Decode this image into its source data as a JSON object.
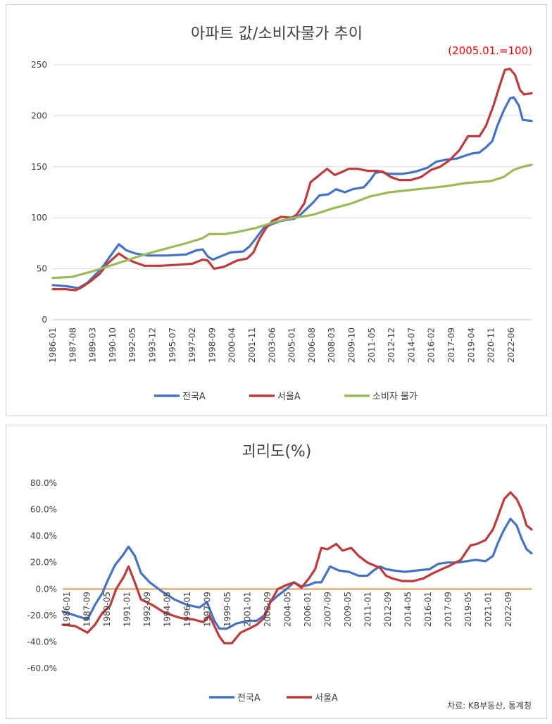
{
  "chart_data": [
    {
      "type": "line",
      "title": "아파트 값/소비자물가 추이",
      "annotation": "(2005.01.=100)",
      "ylim": [
        0,
        250
      ],
      "yticks": [
        "0",
        "50",
        "100",
        "150",
        "200",
        "250"
      ],
      "xlim": [
        1986.0,
        2023.7
      ],
      "xticks": [
        "1986-01",
        "1987-08",
        "1989-03",
        "1990-10",
        "1992-05",
        "1993-12",
        "1995-07",
        "1997-02",
        "1998-09",
        "2000-04",
        "2001-11",
        "2003-06",
        "2005-01",
        "2006-08",
        "2008-03",
        "2009-10",
        "2011-05",
        "2012-12",
        "2014-07",
        "2016-02",
        "2017-09",
        "2019-04",
        "2020-11",
        "2022-06"
      ],
      "grid": true,
      "legend": "bottom",
      "series": [
        {
          "name": "전국A",
          "color": "#4472c4",
          "x": [
            1986.0,
            1987.0,
            1988.0,
            1988.7,
            1989.5,
            1990.0,
            1990.5,
            1991.2,
            1991.8,
            1992.5,
            1993.5,
            1995.0,
            1996.5,
            1997.3,
            1997.8,
            1998.2,
            1998.6,
            1999.2,
            2000.0,
            2001.0,
            2001.5,
            2002.0,
            2002.6,
            2003.3,
            2004.0,
            2005.0,
            2005.5,
            2006.0,
            2006.5,
            2007.0,
            2007.7,
            2008.3,
            2009.0,
            2009.6,
            2010.5,
            2011.0,
            2011.4,
            2011.8,
            2012.5,
            2013.5,
            2014.5,
            2015.5,
            2016.2,
            2017.0,
            2017.8,
            2018.5,
            2019.0,
            2019.6,
            2020.1,
            2020.6,
            2021.0,
            2021.5,
            2022.0,
            2022.3,
            2022.7,
            2023.0,
            2023.7
          ],
          "values": [
            34,
            33,
            31,
            36,
            46,
            53,
            62,
            74,
            68,
            65,
            63,
            63,
            64,
            68,
            69,
            62,
            59,
            62,
            66,
            67,
            72,
            80,
            90,
            94,
            97,
            99,
            103,
            109,
            115,
            122,
            123,
            128,
            125,
            128,
            130,
            137,
            144,
            145,
            143,
            143,
            145,
            149,
            155,
            157,
            158,
            161,
            163,
            164,
            169,
            175,
            190,
            205,
            217,
            218,
            210,
            196,
            195
          ]
        },
        {
          "name": "서울A",
          "color": "#c0393b",
          "x": [
            1986.0,
            1987.0,
            1987.8,
            1988.3,
            1989.0,
            1989.7,
            1990.3,
            1991.2,
            1991.8,
            1992.3,
            1993.2,
            1994.5,
            1996.0,
            1997.0,
            1997.8,
            1998.2,
            1998.7,
            1999.5,
            2000.5,
            2001.3,
            2001.8,
            2002.3,
            2002.8,
            2003.3,
            2004.0,
            2004.8,
            2005.2,
            2005.8,
            2006.3,
            2006.8,
            2007.6,
            2008.2,
            2008.8,
            2009.3,
            2010.0,
            2010.8,
            2011.5,
            2012.0,
            2012.6,
            2013.3,
            2014.2,
            2015.0,
            2015.8,
            2016.5,
            2017.2,
            2018.0,
            2018.7,
            2019.0,
            2019.6,
            2020.1,
            2020.7,
            2021.2,
            2021.6,
            2022.0,
            2022.4,
            2022.8,
            2023.1,
            2023.7
          ],
          "values": [
            30,
            30,
            29,
            32,
            38,
            45,
            55,
            65,
            60,
            57,
            53,
            53,
            54,
            55,
            59,
            58,
            50,
            52,
            58,
            60,
            66,
            80,
            90,
            97,
            101,
            100,
            103,
            114,
            135,
            140,
            148,
            142,
            145,
            148,
            148,
            146,
            146,
            145,
            140,
            137,
            137,
            140,
            147,
            150,
            156,
            166,
            180,
            180,
            180,
            190,
            210,
            230,
            245,
            246,
            240,
            225,
            221,
            222
          ]
        },
        {
          "name": "소비자 물가",
          "color": "#9bbb59",
          "x": [
            1986.0,
            1987.5,
            1989.0,
            1990.5,
            1992.0,
            1993.5,
            1995.0,
            1996.5,
            1997.8,
            1998.3,
            1999.5,
            2000.5,
            2002.0,
            2003.5,
            2005.0,
            2006.5,
            2008.0,
            2009.5,
            2011.0,
            2012.5,
            2014.0,
            2015.5,
            2017.0,
            2018.5,
            2019.5,
            2020.5,
            2021.5,
            2022.3,
            2023.0,
            2023.7
          ],
          "values": [
            41,
            42,
            47,
            53,
            59,
            65,
            70,
            75,
            80,
            84,
            84,
            86,
            90,
            96,
            100,
            103,
            109,
            114,
            121,
            125,
            127,
            129,
            131,
            134,
            135,
            136,
            140,
            147,
            150,
            152
          ]
        }
      ]
    },
    {
      "type": "line",
      "title": "괴리도(%)",
      "ylim": [
        -60,
        80
      ],
      "yticks": [
        "-60.0%",
        "-40.0%",
        "-20.0%",
        "0.0%",
        "20.0%",
        "40.0%",
        "60.0%",
        "80.0%"
      ],
      "xlim": [
        1986.0,
        2023.7
      ],
      "xticks": [
        "1986-01",
        "1987-09",
        "1989-05",
        "1991-01",
        "1992-09",
        "1994-05",
        "1996-01",
        "1997-09",
        "1999-05",
        "2001-01",
        "2002-09",
        "2004-05",
        "2006-01",
        "2007-09",
        "2009-05",
        "2011-01",
        "2012-09",
        "2014-05",
        "2016-01",
        "2017-09",
        "2019-05",
        "2021-01",
        "2022-09"
      ],
      "grid": false,
      "legend": "bottom",
      "baseline": {
        "value": 0,
        "color": "#ed7d31"
      },
      "series": [
        {
          "name": "전국A",
          "color": "#4472c4",
          "x": [
            1986.0,
            1987.0,
            1988.0,
            1988.6,
            1989.2,
            1989.6,
            1990.2,
            1990.8,
            1991.3,
            1991.8,
            1992.3,
            1993.0,
            1994.0,
            1995.0,
            1996.0,
            1997.0,
            1997.6,
            1998.2,
            1998.6,
            1999.2,
            2000.0,
            2001.0,
            2001.6,
            2002.2,
            2002.7,
            2003.3,
            2004.0,
            2004.6,
            2005.2,
            2005.8,
            2006.3,
            2006.8,
            2007.5,
            2008.2,
            2009.0,
            2009.8,
            2010.5,
            2011.0,
            2011.5,
            2012.0,
            2012.6,
            2013.5,
            2014.5,
            2015.5,
            2016.2,
            2017.0,
            2017.8,
            2018.5,
            2019.2,
            2020.0,
            2020.6,
            2021.0,
            2021.5,
            2022.0,
            2022.5,
            2022.9,
            2023.3,
            2023.7
          ],
          "values": [
            -17,
            -20,
            -23,
            -12,
            -3,
            6,
            18,
            25,
            32,
            25,
            12,
            5,
            -2,
            -8,
            -12,
            -14,
            -10,
            -24,
            -30,
            -30,
            -26,
            -24,
            -24,
            -20,
            -10,
            -5,
            0,
            5,
            2,
            3,
            5,
            5,
            17,
            14,
            13,
            10,
            10,
            14,
            17,
            15,
            14,
            13,
            14,
            15,
            19,
            20,
            20,
            21,
            22,
            21,
            25,
            35,
            45,
            53,
            48,
            38,
            30,
            27
          ]
        },
        {
          "name": "서울A",
          "color": "#c0393b",
          "x": [
            1986.0,
            1987.0,
            1988.0,
            1988.6,
            1989.2,
            1989.8,
            1990.3,
            1990.9,
            1991.3,
            1991.8,
            1992.3,
            1993.2,
            1994.2,
            1995.5,
            1996.5,
            1997.3,
            1997.8,
            1998.2,
            1998.6,
            1999.0,
            1999.6,
            2000.3,
            2001.0,
            2001.6,
            2002.2,
            2002.7,
            2003.3,
            2004.0,
            2004.6,
            2005.2,
            2005.8,
            2006.3,
            2006.8,
            2007.3,
            2008.0,
            2008.5,
            2009.2,
            2009.8,
            2010.5,
            2011.0,
            2011.5,
            2012.0,
            2012.5,
            2013.3,
            2014.2,
            2015.0,
            2015.8,
            2016.5,
            2017.2,
            2018.0,
            2018.8,
            2019.3,
            2020.0,
            2020.6,
            2021.0,
            2021.5,
            2022.0,
            2022.5,
            2022.9,
            2023.3,
            2023.7
          ],
          "values": [
            -27,
            -28,
            -33,
            -27,
            -18,
            -13,
            0,
            9,
            17,
            5,
            -8,
            -12,
            -18,
            -22,
            -23,
            -25,
            -20,
            -28,
            -36,
            -41,
            -41,
            -33,
            -30,
            -27,
            -22,
            -10,
            0,
            3,
            5,
            1,
            8,
            15,
            31,
            30,
            34,
            29,
            31,
            25,
            20,
            18,
            16,
            10,
            8,
            6,
            6,
            8,
            12,
            15,
            18,
            22,
            33,
            34,
            37,
            45,
            55,
            68,
            73,
            68,
            60,
            48,
            45
          ]
        }
      ]
    }
  ],
  "source": "차료: KB부동산, 통계청"
}
